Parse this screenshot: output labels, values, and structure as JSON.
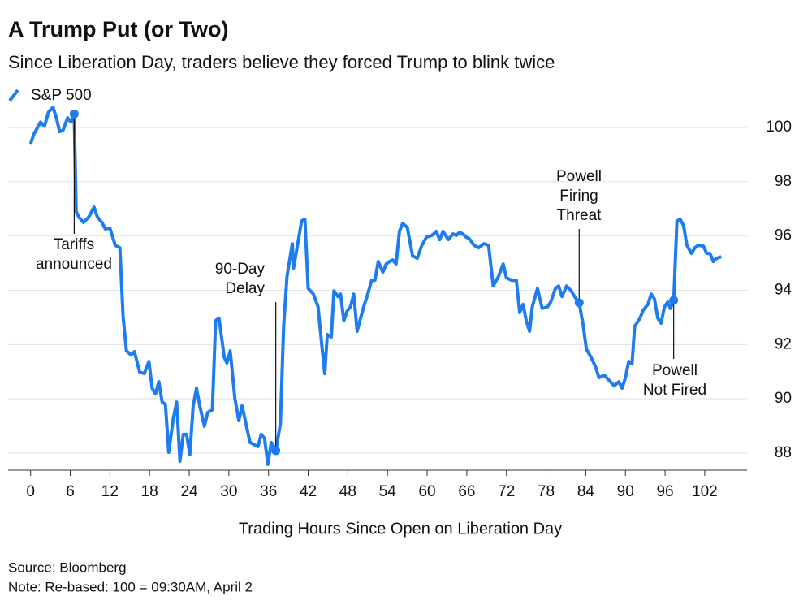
{
  "chart_data": {
    "type": "line",
    "title": "A Trump Put (or Two)",
    "subtitle": "Since Liberation Day, traders believe they forced Trump to blink twice",
    "x_label": "Trading Hours Since Open on Liberation Day",
    "source": "Source: Bloomberg",
    "note": "Note: Re-based: 100 = 09:30AM, April 2",
    "xlim": [
      -3.4,
      108.4
    ],
    "ylim": [
      87.4,
      101.5
    ],
    "xticks": [
      0,
      6,
      12,
      18,
      24,
      30,
      36,
      42,
      48,
      54,
      60,
      66,
      72,
      78,
      84,
      90,
      96,
      102
    ],
    "yticks": [
      88,
      90,
      92,
      94,
      96,
      98,
      100
    ],
    "grid": true,
    "series": [
      {
        "name": "S&P 500",
        "color": "#1f7cf0",
        "x": [
          0,
          0.5,
          1.5,
          2.1,
          2.7,
          3.4,
          3.9,
          4.4,
          4.9,
          5.6,
          6.1,
          6.6,
          6.9,
          7.3,
          8.0,
          8.8,
          9.6,
          10.1,
          10.8,
          11.3,
          12.0,
          12.8,
          13.5,
          14.0,
          14.5,
          15.2,
          15.7,
          16.5,
          17.2,
          17.9,
          18.4,
          18.9,
          19.4,
          19.9,
          20.4,
          20.9,
          21.6,
          22.1,
          22.6,
          23.1,
          23.6,
          24.1,
          24.6,
          25.1,
          25.6,
          26.3,
          26.8,
          27.5,
          28.0,
          28.5,
          29.3,
          29.7,
          30.2,
          30.9,
          31.5,
          32.0,
          32.4,
          33.2,
          33.9,
          34.4,
          34.9,
          35.4,
          35.9,
          36.4,
          37.1,
          37.8,
          38.3,
          38.8,
          39.6,
          39.8,
          40.6,
          41.0,
          41.5,
          42.0,
          42.8,
          43.5,
          44.0,
          44.5,
          44.9,
          45.5,
          45.9,
          46.5,
          46.9,
          47.4,
          47.9,
          48.4,
          48.9,
          49.4,
          49.9,
          50.4,
          50.9,
          51.6,
          52.1,
          52.6,
          53.3,
          53.8,
          54.3,
          54.8,
          55.3,
          55.8,
          56.3,
          57.0,
          57.8,
          58.5,
          59.2,
          59.9,
          60.7,
          61.4,
          61.9,
          62.4,
          63.2,
          63.9,
          64.4,
          64.9,
          65.4,
          65.9,
          66.4,
          67.1,
          67.8,
          68.6,
          69.3,
          70.0,
          70.8,
          71.5,
          72.0,
          72.8,
          73.5,
          74.0,
          74.5,
          75.0,
          75.5,
          75.9,
          76.7,
          77.4,
          78.2,
          78.7,
          79.4,
          79.9,
          80.4,
          81.1,
          81.8,
          82.3,
          83.0,
          83.6,
          84.1,
          84.8,
          85.5,
          86.0,
          86.8,
          87.5,
          88.3,
          89.0,
          89.5,
          90.0,
          90.5,
          91.0,
          91.4,
          92.2,
          92.7,
          93.4,
          93.9,
          94.4,
          94.9,
          95.4,
          95.9,
          96.4,
          96.8,
          97.3,
          97.8,
          98.3,
          98.8,
          99.3,
          100.0,
          100.5,
          101.0,
          101.8,
          102.3,
          102.8,
          103.3,
          103.8,
          104.5
        ],
        "values": [
          99.4,
          99.76,
          100.2,
          100.05,
          100.57,
          100.75,
          100.36,
          99.85,
          99.9,
          100.36,
          100.2,
          100.5,
          96.9,
          96.7,
          96.5,
          96.7,
          97.07,
          96.7,
          96.5,
          96.26,
          96.3,
          95.66,
          95.57,
          93.03,
          91.77,
          91.62,
          91.74,
          90.99,
          90.93,
          91.38,
          90.39,
          90.18,
          90.63,
          89.88,
          89.8,
          88.03,
          89.29,
          89.88,
          87.7,
          88.69,
          88.69,
          87.94,
          89.74,
          90.39,
          89.74,
          88.99,
          89.5,
          89.59,
          92.88,
          92.97,
          91.53,
          91.32,
          91.77,
          90.03,
          89.2,
          89.74,
          89.29,
          88.39,
          88.3,
          88.24,
          88.69,
          88.54,
          87.58,
          88.39,
          88.09,
          89.08,
          92.73,
          94.52,
          95.72,
          94.82,
          95.96,
          96.56,
          96.62,
          94.07,
          93.86,
          93.39,
          92.13,
          90.93,
          92.37,
          92.28,
          93.98,
          93.77,
          93.86,
          92.88,
          93.24,
          93.39,
          93.86,
          92.49,
          92.94,
          93.39,
          93.77,
          94.37,
          94.37,
          95.06,
          94.67,
          94.97,
          95.06,
          95.12,
          94.97,
          96.17,
          96.47,
          96.32,
          95.27,
          95.18,
          95.66,
          95.96,
          96.02,
          96.17,
          95.87,
          96.17,
          95.87,
          96.08,
          96.02,
          96.14,
          96.08,
          95.96,
          95.9,
          95.66,
          95.57,
          95.72,
          95.66,
          94.16,
          94.52,
          94.97,
          94.46,
          94.37,
          94.37,
          93.18,
          93.48,
          92.88,
          92.49,
          93.39,
          94.07,
          93.33,
          93.39,
          93.57,
          94.07,
          94.16,
          93.77,
          94.16,
          93.98,
          93.77,
          93.54,
          92.73,
          91.83,
          91.53,
          91.17,
          90.78,
          90.87,
          90.69,
          90.48,
          90.63,
          90.39,
          90.78,
          91.38,
          91.29,
          92.67,
          92.97,
          93.27,
          93.48,
          93.86,
          93.68,
          92.97,
          92.79,
          93.39,
          93.57,
          93.33,
          93.63,
          96.56,
          96.62,
          96.38,
          95.66,
          95.36,
          95.57,
          95.66,
          95.63,
          95.36,
          95.36,
          95.06,
          95.18,
          95.24
        ]
      }
    ],
    "annotations": [
      {
        "text": [
          "Tariffs",
          "announced"
        ],
        "x": 6.6,
        "y": 100.5
      },
      {
        "text": [
          "90-Day",
          "Delay"
        ],
        "x": 37.1,
        "y": 88.09
      },
      {
        "text": [
          "Powell",
          "Firing",
          "Threat"
        ],
        "x": 83.0,
        "y": 93.54
      },
      {
        "text": [
          "Powell",
          "Not Fired"
        ],
        "x": 97.3,
        "y": 93.63
      }
    ]
  }
}
